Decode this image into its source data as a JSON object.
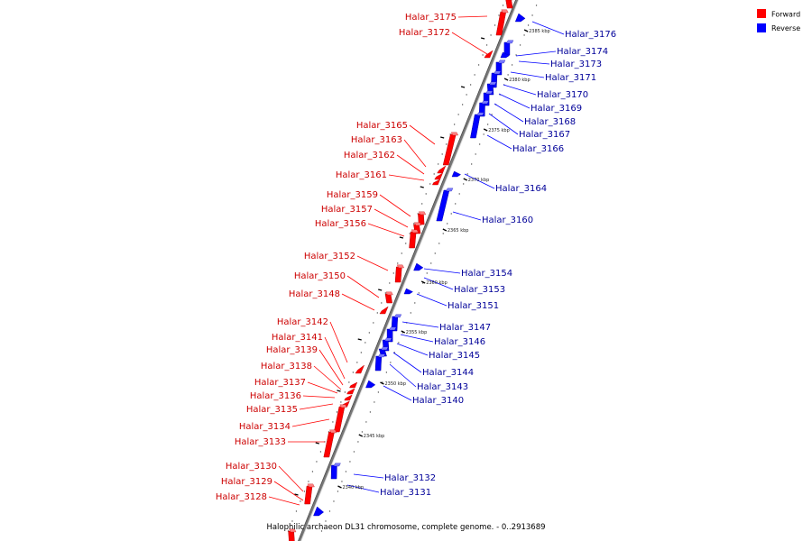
{
  "legend": [
    {
      "label": "Forward",
      "color": "#ff0000"
    },
    {
      "label": "Reverse",
      "color": "#0000ff"
    }
  ],
  "caption": "Halophilic archaeon DL31 chromosome, complete genome. - 0..2913689",
  "colors": {
    "forward": "#ff0000",
    "reverse": "#0000ff",
    "forward_label": "#cc0000",
    "reverse_label": "#000099"
  },
  "scale_ticks": [
    "2385 kbp",
    "2380 kbp",
    "2375 kbp",
    "2370 kbp",
    "2365 kbp",
    "2360 kbp",
    "2355 kbp",
    "2350 kbp",
    "2345 kbp",
    "2340 kbp"
  ],
  "forward_genes": [
    "Halar_3175",
    "Halar_3172",
    "Halar_3165",
    "Halar_3163",
    "Halar_3162",
    "Halar_3161",
    "Halar_3159",
    "Halar_3157",
    "Halar_3156",
    "Halar_3152",
    "Halar_3150",
    "Halar_3148",
    "Halar_3142",
    "Halar_3141",
    "Halar_3139",
    "Halar_3138",
    "Halar_3137",
    "Halar_3136",
    "Halar_3135",
    "Halar_3134",
    "Halar_3133",
    "Halar_3130",
    "Halar_3129",
    "Halar_3128"
  ],
  "reverse_genes": [
    "Halar_3176",
    "Halar_3174",
    "Halar_3173",
    "Halar_3171",
    "Halar_3170",
    "Halar_3169",
    "Halar_3168",
    "Halar_3167",
    "Halar_3166",
    "Halar_3164",
    "Halar_3160",
    "Halar_3154",
    "Halar_3153",
    "Halar_3151",
    "Halar_3147",
    "Halar_3146",
    "Halar_3145",
    "Halar_3144",
    "Halar_3143",
    "Halar_3140",
    "Halar_3132",
    "Halar_3131"
  ]
}
